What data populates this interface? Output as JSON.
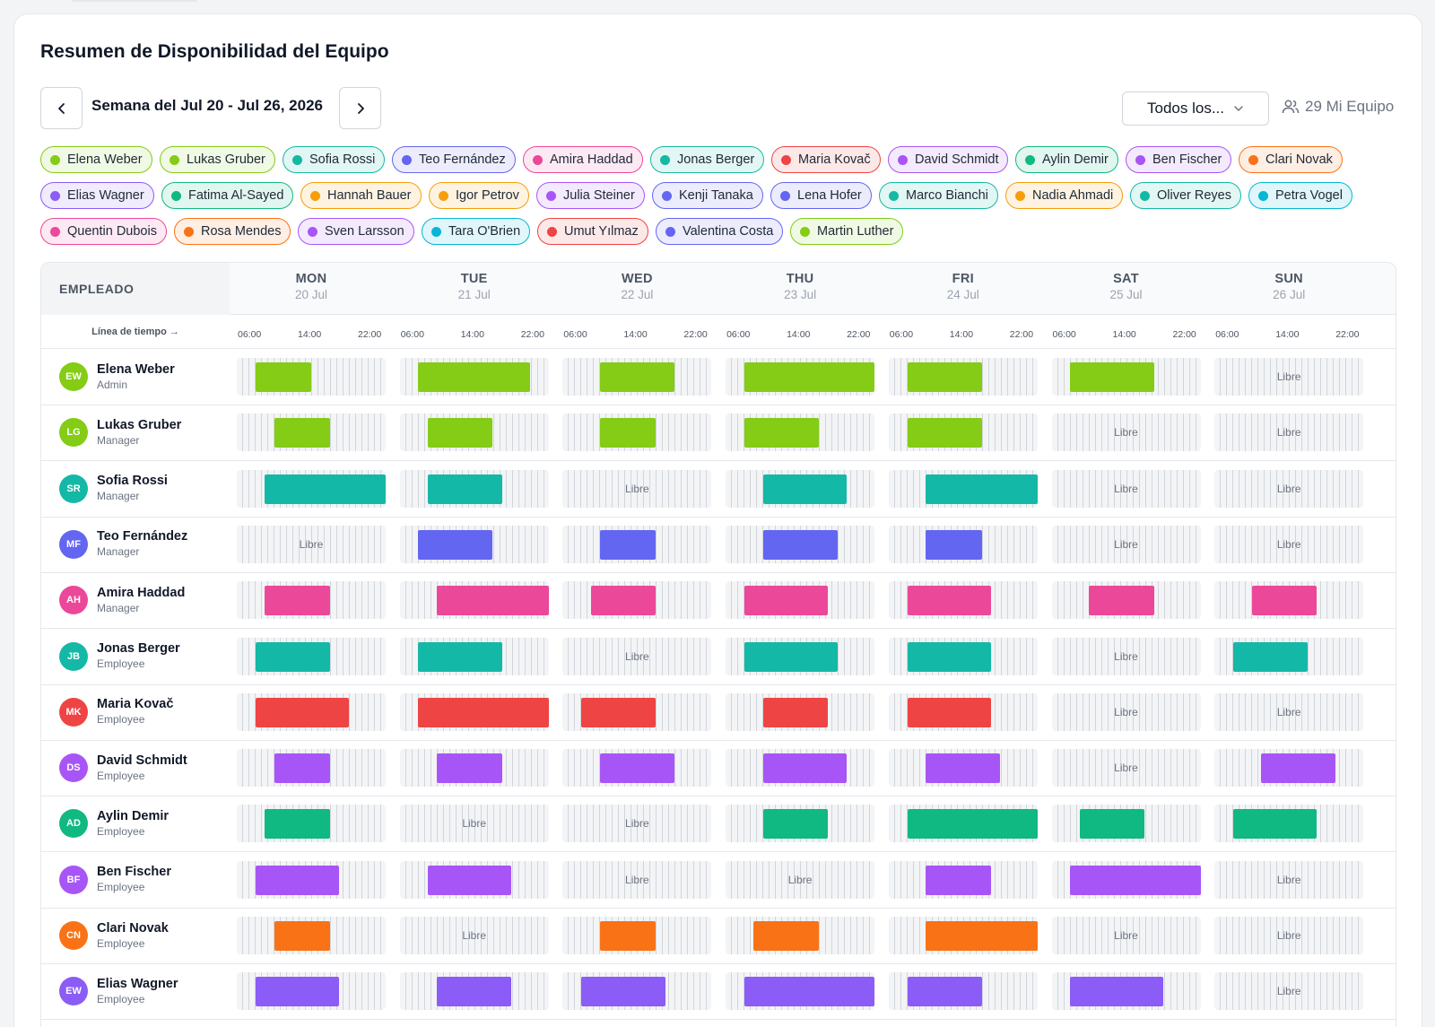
{
  "title": "Resumen de Disponibilidad del Equipo",
  "week_label": "Semana del Jul 20 - Jul 26, 2026",
  "filter_label": "Todos los...",
  "team_count_label": "29 Mi Equipo",
  "colors": {
    "lime": "#84cc16",
    "teal": "#14b8a6",
    "indigo": "#6366f1",
    "pink": "#ec4899",
    "red": "#ef4444",
    "purple": "#a855f7",
    "green": "#10b981",
    "violet": "#8b5cf6",
    "orange": "#f97316",
    "amber": "#f59e0b",
    "cyan": "#06b6d4",
    "blue": "#6366f1"
  },
  "chips": [
    {
      "label": "Elena Weber",
      "color": "#84cc16"
    },
    {
      "label": "Lukas Gruber",
      "color": "#84cc16"
    },
    {
      "label": "Sofia Rossi",
      "color": "#14b8a6"
    },
    {
      "label": "Teo Fernández",
      "color": "#6366f1"
    },
    {
      "label": "Amira Haddad",
      "color": "#ec4899"
    },
    {
      "label": "Jonas Berger",
      "color": "#14b8a6"
    },
    {
      "label": "Maria Kovač",
      "color": "#ef4444"
    },
    {
      "label": "David Schmidt",
      "color": "#a855f7"
    },
    {
      "label": "Aylin Demir",
      "color": "#10b981"
    },
    {
      "label": "Ben Fischer",
      "color": "#a855f7"
    },
    {
      "label": "Clari Novak",
      "color": "#f97316"
    },
    {
      "label": "Elias Wagner",
      "color": "#8b5cf6"
    },
    {
      "label": "Fatima Al-Sayed",
      "color": "#10b981"
    },
    {
      "label": "Hannah Bauer",
      "color": "#f59e0b"
    },
    {
      "label": "Igor Petrov",
      "color": "#f59e0b"
    },
    {
      "label": "Julia Steiner",
      "color": "#a855f7"
    },
    {
      "label": "Kenji Tanaka",
      "color": "#6366f1"
    },
    {
      "label": "Lena Hofer",
      "color": "#6366f1"
    },
    {
      "label": "Marco Bianchi",
      "color": "#14b8a6"
    },
    {
      "label": "Nadia Ahmadi",
      "color": "#f59e0b"
    },
    {
      "label": "Oliver Reyes",
      "color": "#14b8a6"
    },
    {
      "label": "Petra Vogel",
      "color": "#06b6d4"
    },
    {
      "label": "Quentin Dubois",
      "color": "#ec4899"
    },
    {
      "label": "Rosa Mendes",
      "color": "#f97316"
    },
    {
      "label": "Sven Larsson",
      "color": "#a855f7"
    },
    {
      "label": "Tara O'Brien",
      "color": "#06b6d4"
    },
    {
      "label": "Umut Yılmaz",
      "color": "#ef4444"
    },
    {
      "label": "Valentina Costa",
      "color": "#6366f1"
    },
    {
      "label": "Martin Luther",
      "color": "#84cc16"
    }
  ],
  "header": {
    "employee_col": "EMPLEADO",
    "timeline_label": "Línea de tiempo →",
    "ticks": [
      "06:00",
      "14:00",
      "22:00"
    ],
    "days": [
      {
        "name": "MON",
        "date": "20 Jul"
      },
      {
        "name": "TUE",
        "date": "21 Jul"
      },
      {
        "name": "WED",
        "date": "22 Jul"
      },
      {
        "name": "THU",
        "date": "23 Jul"
      },
      {
        "name": "FRI",
        "date": "24 Jul"
      },
      {
        "name": "SAT",
        "date": "25 Jul"
      },
      {
        "name": "SUN",
        "date": "26 Jul"
      }
    ]
  },
  "free_label": "Libre",
  "employees": [
    {
      "initials": "EW",
      "name": "Elena Weber",
      "role": "Admin",
      "color": "#84cc16",
      "shifts": [
        [
          8,
          14
        ],
        [
          8,
          20
        ],
        [
          10,
          18
        ],
        [
          8,
          22
        ],
        [
          8,
          16
        ],
        [
          8,
          17
        ],
        null
      ]
    },
    {
      "initials": "LG",
      "name": "Lukas Gruber",
      "role": "Manager",
      "color": "#84cc16",
      "shifts": [
        [
          10,
          16
        ],
        [
          9,
          16
        ],
        [
          10,
          16
        ],
        [
          8,
          16
        ],
        [
          8,
          16
        ],
        null,
        null
      ]
    },
    {
      "initials": "SR",
      "name": "Sofia Rossi",
      "role": "Manager",
      "color": "#14b8a6",
      "shifts": [
        [
          9,
          22
        ],
        [
          9,
          17
        ],
        null,
        [
          10,
          19
        ],
        [
          10,
          22
        ],
        null,
        null
      ]
    },
    {
      "initials": "MF",
      "name": "Teo Fernández",
      "role": "Manager",
      "color": "#6366f1",
      "shifts": [
        null,
        [
          8,
          16
        ],
        [
          10,
          16
        ],
        [
          10,
          18
        ],
        [
          10,
          16
        ],
        null,
        null
      ]
    },
    {
      "initials": "AH",
      "name": "Amira Haddad",
      "role": "Manager",
      "color": "#ec4899",
      "shifts": [
        [
          9,
          16
        ],
        [
          10,
          22
        ],
        [
          9,
          16
        ],
        [
          8,
          17
        ],
        [
          8,
          17
        ],
        [
          10,
          17
        ],
        [
          10,
          17
        ]
      ]
    },
    {
      "initials": "JB",
      "name": "Jonas Berger",
      "role": "Employee",
      "color": "#14b8a6",
      "shifts": [
        [
          8,
          16
        ],
        [
          8,
          17
        ],
        null,
        [
          8,
          18
        ],
        [
          8,
          17
        ],
        null,
        [
          8,
          16
        ]
      ]
    },
    {
      "initials": "MK",
      "name": "Maria Kovač",
      "role": "Employee",
      "color": "#ef4444",
      "shifts": [
        [
          8,
          18
        ],
        [
          8,
          22
        ],
        [
          8,
          16
        ],
        [
          10,
          17
        ],
        [
          8,
          17
        ],
        null,
        null
      ]
    },
    {
      "initials": "DS",
      "name": "David Schmidt",
      "role": "Employee",
      "color": "#a855f7",
      "shifts": [
        [
          10,
          16
        ],
        [
          10,
          17
        ],
        [
          10,
          18
        ],
        [
          10,
          19
        ],
        [
          10,
          18
        ],
        null,
        [
          11,
          19
        ]
      ]
    },
    {
      "initials": "AD",
      "name": "Aylin Demir",
      "role": "Employee",
      "color": "#10b981",
      "shifts": [
        [
          9,
          16
        ],
        null,
        null,
        [
          10,
          17
        ],
        [
          8,
          22
        ],
        [
          9,
          16
        ],
        [
          8,
          17
        ]
      ]
    },
    {
      "initials": "BF",
      "name": "Ben Fischer",
      "role": "Employee",
      "color": "#a855f7",
      "shifts": [
        [
          8,
          17
        ],
        [
          9,
          18
        ],
        null,
        null,
        [
          10,
          17
        ],
        [
          8,
          22
        ],
        null
      ]
    },
    {
      "initials": "CN",
      "name": "Clari Novak",
      "role": "Employee",
      "color": "#f97316",
      "shifts": [
        [
          10,
          16
        ],
        null,
        [
          10,
          16
        ],
        [
          9,
          16
        ],
        [
          10,
          22
        ],
        null,
        null
      ]
    },
    {
      "initials": "EW",
      "name": "Elias Wagner",
      "role": "Employee",
      "color": "#8b5cf6",
      "shifts": [
        [
          8,
          17
        ],
        [
          10,
          18
        ],
        [
          8,
          17
        ],
        [
          8,
          22
        ],
        [
          8,
          16
        ],
        [
          8,
          18
        ],
        null
      ]
    }
  ]
}
